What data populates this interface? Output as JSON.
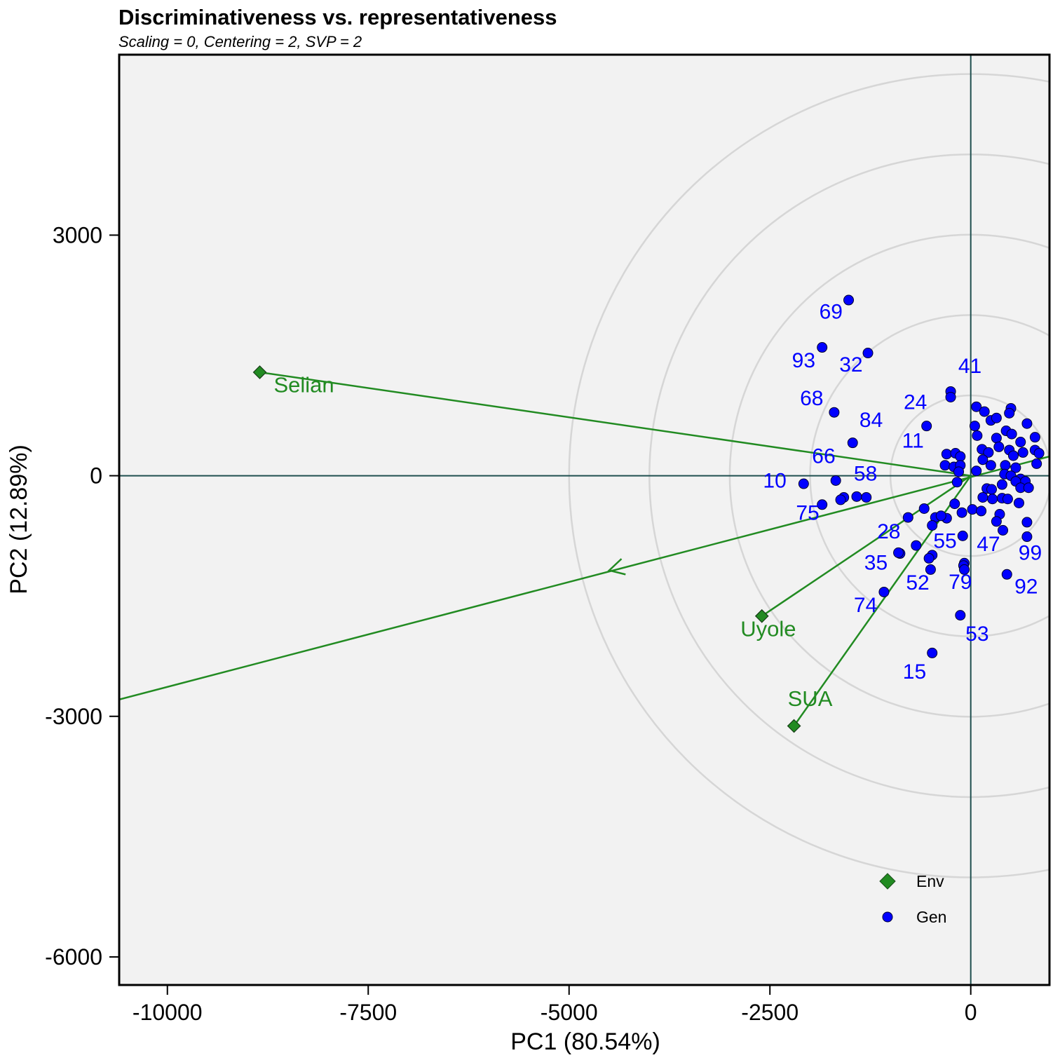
{
  "chart_data": {
    "type": "scatter",
    "title": "Discriminativeness vs. representativeness",
    "subtitle": "Scaling = 0, Centering = 2, SVP = 2",
    "xlabel": "PC1 (80.54%)",
    "ylabel": "PC2 (12.89%)",
    "xlim": [
      -10600,
      980
    ],
    "ylim": [
      -6350,
      5250
    ],
    "xticks": [
      -10000,
      -7500,
      -5000,
      -2500,
      0
    ],
    "yticks": [
      3000,
      0,
      -3000,
      -6000
    ],
    "tick_labels_x": [
      "-10000",
      "-7500",
      "-5000",
      "-2500",
      "0"
    ],
    "tick_labels_y": [
      "3000",
      "0",
      "-3000",
      "-6000"
    ],
    "grid": false,
    "concentric_circle_radii": [
      1000,
      2000,
      3000,
      4000,
      5000
    ],
    "average_environment_axis": {
      "from": [
        -10600,
        -2790
      ],
      "to": [
        980,
        240
      ],
      "arrow_at": [
        -4500,
        -1180
      ]
    },
    "legend": {
      "placement": "bottom-right",
      "entries": [
        {
          "label": "Env",
          "marker": "diamond",
          "color": "#228b22"
        },
        {
          "label": "Gen",
          "marker": "circle",
          "color": "#0000ff"
        }
      ]
    },
    "environments": [
      {
        "name": "Selian",
        "x": -8850,
        "y": 1290
      },
      {
        "name": "Uyole",
        "x": -2600,
        "y": -1750
      },
      {
        "name": "SUA",
        "x": -2200,
        "y": -3120
      }
    ],
    "genotypes": [
      {
        "label": "69",
        "x": -1520,
        "y": 2190
      },
      {
        "label": "93",
        "x": -1850,
        "y": 1600
      },
      {
        "label": "32",
        "x": -1280,
        "y": 1530
      },
      {
        "label": "41",
        "x": -250,
        "y": 1050
      },
      {
        "label": "",
        "x": -250,
        "y": 980
      },
      {
        "label": "68",
        "x": -1700,
        "y": 790
      },
      {
        "label": "24",
        "x": -550,
        "y": 620
      },
      {
        "label": "84",
        "x": -1470,
        "y": 410
      },
      {
        "label": "11",
        "x": -300,
        "y": 270
      },
      {
        "label": "66",
        "x": -1680,
        "y": -60
      },
      {
        "label": "10",
        "x": -2080,
        "y": -100
      },
      {
        "label": "58",
        "x": -1580,
        "y": -270
      },
      {
        "label": "75",
        "x": -1850,
        "y": -360
      },
      {
        "label": "28",
        "x": -780,
        "y": -520
      },
      {
        "label": "55",
        "x": -480,
        "y": -990
      },
      {
        "label": "47",
        "x": -80,
        "y": -1090
      },
      {
        "label": "35",
        "x": -1080,
        "y": -1450
      },
      {
        "label": "52",
        "x": -500,
        "y": -1170
      },
      {
        "label": "79",
        "x": -130,
        "y": -1740
      },
      {
        "label": "74",
        "x": -880,
        "y": -970
      },
      {
        "label": "53",
        "x": -480,
        "y": -2210
      },
      {
        "label": "15",
        "x": -680,
        "y": -870
      },
      {
        "label": "99",
        "x": 700,
        "y": -580
      },
      {
        "label": "92",
        "x": 450,
        "y": -1230
      },
      {
        "label": "",
        "x": 700,
        "y": -760
      },
      {
        "label": "",
        "x": 70,
        "y": 860
      },
      {
        "label": "",
        "x": 170,
        "y": 800
      },
      {
        "label": "",
        "x": 500,
        "y": 840
      },
      {
        "label": "",
        "x": 250,
        "y": 690
      },
      {
        "label": "",
        "x": 320,
        "y": 720
      },
      {
        "label": "",
        "x": 480,
        "y": 780
      },
      {
        "label": "",
        "x": 700,
        "y": 650
      },
      {
        "label": "",
        "x": 50,
        "y": 620
      },
      {
        "label": "",
        "x": 80,
        "y": 500
      },
      {
        "label": "",
        "x": 320,
        "y": 470
      },
      {
        "label": "",
        "x": 440,
        "y": 560
      },
      {
        "label": "",
        "x": 510,
        "y": 520
      },
      {
        "label": "",
        "x": 620,
        "y": 420
      },
      {
        "label": "",
        "x": 800,
        "y": 480
      },
      {
        "label": "",
        "x": 350,
        "y": 360
      },
      {
        "label": "",
        "x": 480,
        "y": 320
      },
      {
        "label": "",
        "x": 140,
        "y": 330
      },
      {
        "label": "",
        "x": 220,
        "y": 290
      },
      {
        "label": "",
        "x": 530,
        "y": 250
      },
      {
        "label": "",
        "x": 650,
        "y": 290
      },
      {
        "label": "",
        "x": 800,
        "y": 320
      },
      {
        "label": "",
        "x": 850,
        "y": 280
      },
      {
        "label": "",
        "x": 150,
        "y": 200
      },
      {
        "label": "",
        "x": 250,
        "y": 130
      },
      {
        "label": "",
        "x": 430,
        "y": 130
      },
      {
        "label": "",
        "x": 560,
        "y": 100
      },
      {
        "label": "",
        "x": 820,
        "y": 150
      },
      {
        "label": "",
        "x": 70,
        "y": 60
      },
      {
        "label": "",
        "x": 420,
        "y": 20
      },
      {
        "label": "",
        "x": 500,
        "y": 0
      },
      {
        "label": "",
        "x": 620,
        "y": -40
      },
      {
        "label": "",
        "x": 680,
        "y": -70
      },
      {
        "label": "",
        "x": 560,
        "y": -70
      },
      {
        "label": "",
        "x": 390,
        "y": -110
      },
      {
        "label": "",
        "x": 200,
        "y": -160
      },
      {
        "label": "",
        "x": 260,
        "y": -170
      },
      {
        "label": "",
        "x": 620,
        "y": -150
      },
      {
        "label": "",
        "x": 720,
        "y": -150
      },
      {
        "label": "",
        "x": 150,
        "y": -270
      },
      {
        "label": "",
        "x": 270,
        "y": -290
      },
      {
        "label": "",
        "x": 390,
        "y": -280
      },
      {
        "label": "",
        "x": 460,
        "y": -290
      },
      {
        "label": "",
        "x": 600,
        "y": -340
      },
      {
        "label": "",
        "x": 20,
        "y": -420
      },
      {
        "label": "",
        "x": 130,
        "y": -440
      },
      {
        "label": "",
        "x": 360,
        "y": -480
      },
      {
        "label": "",
        "x": 320,
        "y": -570
      },
      {
        "label": "",
        "x": 400,
        "y": -680
      },
      {
        "label": "",
        "x": -300,
        "y": -530
      },
      {
        "label": "",
        "x": -200,
        "y": -350
      },
      {
        "label": "",
        "x": -110,
        "y": -460
      },
      {
        "label": "",
        "x": -100,
        "y": -750
      },
      {
        "label": "",
        "x": -90,
        "y": -1120
      },
      {
        "label": "",
        "x": -80,
        "y": -1170
      },
      {
        "label": "",
        "x": -1420,
        "y": -260
      },
      {
        "label": "",
        "x": -580,
        "y": -410
      },
      {
        "label": "",
        "x": -440,
        "y": -520
      },
      {
        "label": "",
        "x": -480,
        "y": -620
      },
      {
        "label": "",
        "x": -370,
        "y": -500
      },
      {
        "label": "",
        "x": -520,
        "y": -1030
      },
      {
        "label": "",
        "x": -900,
        "y": -960
      },
      {
        "label": "",
        "x": -1300,
        "y": -270
      },
      {
        "label": "",
        "x": -1620,
        "y": -300
      },
      {
        "label": "",
        "x": -320,
        "y": 130
      },
      {
        "label": "",
        "x": -190,
        "y": 280
      },
      {
        "label": "",
        "x": -130,
        "y": 240
      },
      {
        "label": "",
        "x": -210,
        "y": 110
      },
      {
        "label": "",
        "x": -130,
        "y": 130
      },
      {
        "label": "",
        "x": -150,
        "y": 50
      },
      {
        "label": "",
        "x": -170,
        "y": -80
      }
    ],
    "genotype_labels": [
      {
        "text": "69",
        "x": -1740,
        "y": 1960
      },
      {
        "text": "93",
        "x": -2080,
        "y": 1350
      },
      {
        "text": "32",
        "x": -1490,
        "y": 1300
      },
      {
        "text": "41",
        "x": -10,
        "y": 1280
      },
      {
        "text": "68",
        "x": -1980,
        "y": 880
      },
      {
        "text": "24",
        "x": -690,
        "y": 830
      },
      {
        "text": "84",
        "x": -1240,
        "y": 610
      },
      {
        "text": "11",
        "x": -720,
        "y": 350
      },
      {
        "text": "66",
        "x": -1830,
        "y": 160
      },
      {
        "text": "10",
        "x": -2440,
        "y": -150
      },
      {
        "text": "58",
        "x": -1310,
        "y": -60
      },
      {
        "text": "75",
        "x": -2030,
        "y": -550
      },
      {
        "text": "28",
        "x": -1020,
        "y": -780
      },
      {
        "text": "55",
        "x": -320,
        "y": -900
      },
      {
        "text": "47",
        "x": 220,
        "y": -940
      },
      {
        "text": "35",
        "x": -1180,
        "y": -1170
      },
      {
        "text": "52",
        "x": -660,
        "y": -1420
      },
      {
        "text": "79",
        "x": -130,
        "y": -1410
      },
      {
        "text": "74",
        "x": -1310,
        "y": -1700
      },
      {
        "text": "53",
        "x": 80,
        "y": -2060
      },
      {
        "text": "15",
        "x": -700,
        "y": -2530
      },
      {
        "text": "99",
        "x": 740,
        "y": -1050
      },
      {
        "text": "92",
        "x": 690,
        "y": -1470
      }
    ]
  }
}
